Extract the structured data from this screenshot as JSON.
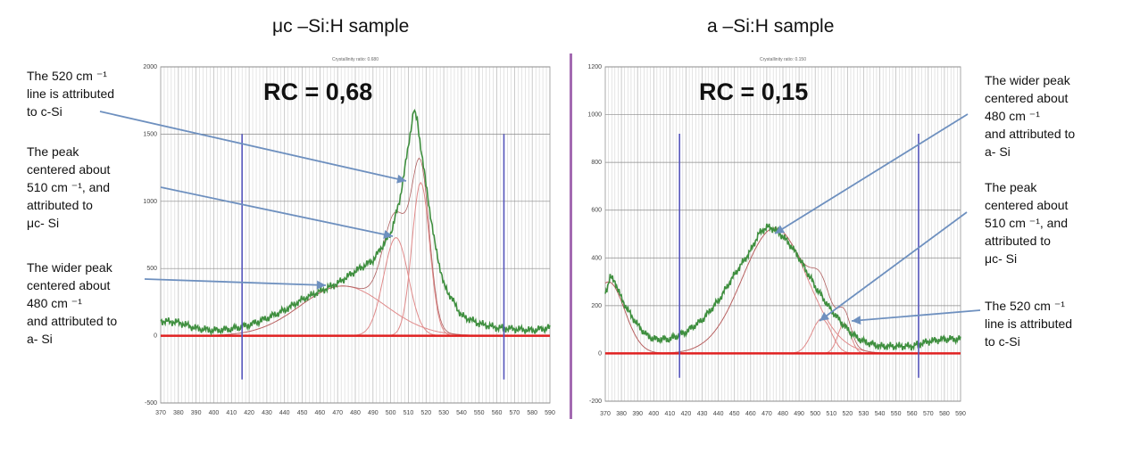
{
  "colors": {
    "measured": "#3f8f3f",
    "fit_component": "#e08a8a",
    "fit_sum": "#b06060",
    "baseline": "#e02020",
    "marker": "#5555bb",
    "annotation_arrow": "#6e90bf",
    "divider": "#a36ab1",
    "grid": "#b5b5b5"
  },
  "panels": [
    {
      "title": "μc –Si:H sample",
      "annotations": [
        "The 520 cm ⁻¹\nline is attributed\nto c-Si",
        "The peak\ncentered about\n510 cm ⁻¹, and\nattributed to\nμc- Si",
        "The wider peak\ncentered about\n480 cm ⁻¹\nand attributed to\na- Si"
      ]
    },
    {
      "title": "a –Si:H sample",
      "annotations": [
        "The wider peak\ncentered about\n480 cm ⁻¹\nand attributed to\na- Si",
        "The peak\ncentered about\n510 cm ⁻¹, and\nattributed to\nμc- Si",
        "The 520 cm ⁻¹\nline is attributed\nto c-Si"
      ]
    }
  ],
  "chart_data": [
    {
      "type": "line",
      "title": "Crystallinity ratio: 0.680",
      "annotation": "RC = 0,68",
      "xlim": [
        370,
        590
      ],
      "ylim": [
        -500,
        2000
      ],
      "x_ticks": [
        370,
        380,
        390,
        400,
        410,
        420,
        430,
        440,
        450,
        460,
        470,
        480,
        490,
        500,
        510,
        520,
        530,
        540,
        550,
        560,
        570,
        580,
        590
      ],
      "y_ticks": [
        -500,
        0,
        500,
        1000,
        1500,
        2000
      ],
      "markers_x": [
        416,
        564
      ],
      "grid": true,
      "series": [
        {
          "role": "measured",
          "x": [
            370,
            380,
            390,
            400,
            410,
            420,
            430,
            440,
            450,
            460,
            470,
            480,
            490,
            500,
            505,
            510,
            513,
            515,
            520,
            525,
            530,
            540,
            550,
            560,
            570,
            580,
            590
          ],
          "y": [
            110,
            100,
            55,
            40,
            50,
            80,
            130,
            190,
            270,
            330,
            390,
            480,
            560,
            760,
            1000,
            1410,
            1680,
            1600,
            1120,
            680,
            380,
            150,
            90,
            60,
            50,
            40,
            60
          ]
        },
        {
          "role": "component",
          "name": "c-Si",
          "center": 517,
          "amplitude": 1140,
          "width": 5
        },
        {
          "role": "component",
          "name": "μc-Si",
          "center": 503,
          "amplitude": 730,
          "width": 7
        },
        {
          "role": "component",
          "name": "a-Si",
          "center": 473,
          "amplitude": 370,
          "width": 24
        },
        {
          "role": "baseline",
          "x": [
            370,
            590
          ],
          "y": [
            0,
            0
          ]
        }
      ]
    },
    {
      "type": "line",
      "title": "Crystallinity ratio: 0.150",
      "annotation": "RC = 0,15",
      "xlim": [
        370,
        590
      ],
      "ylim": [
        -200,
        1200
      ],
      "x_ticks": [
        370,
        380,
        390,
        400,
        410,
        420,
        430,
        440,
        450,
        460,
        470,
        480,
        490,
        500,
        510,
        520,
        530,
        540,
        550,
        560,
        570,
        580,
        590
      ],
      "y_ticks": [
        -200,
        0,
        200,
        400,
        600,
        800,
        1000,
        1200
      ],
      "markers_x": [
        416,
        564
      ],
      "grid": true,
      "series": [
        {
          "role": "measured",
          "x": [
            370,
            373,
            376,
            380,
            385,
            390,
            395,
            400,
            410,
            420,
            430,
            440,
            450,
            460,
            465,
            470,
            475,
            480,
            485,
            490,
            495,
            500,
            505,
            510,
            515,
            520,
            525,
            530,
            535,
            540,
            550,
            560,
            570,
            580,
            590
          ],
          "y": [
            250,
            320,
            300,
            230,
            170,
            120,
            80,
            60,
            60,
            90,
            140,
            220,
            330,
            430,
            500,
            530,
            520,
            490,
            450,
            400,
            340,
            280,
            230,
            180,
            140,
            100,
            70,
            50,
            40,
            30,
            30,
            30,
            50,
            60,
            60
          ]
        },
        {
          "role": "component",
          "name": "a-Si",
          "center": 475,
          "amplitude": 525,
          "width": 20
        },
        {
          "role": "component",
          "name": "μc-Si",
          "center": 504,
          "amplitude": 145,
          "width": 6
        },
        {
          "role": "component",
          "name": "c-Si",
          "center": 518,
          "amplitude": 125,
          "width": 4
        },
        {
          "role": "component",
          "name": "low-wavenumber band",
          "center": 372,
          "amplitude": 300,
          "width": 10
        },
        {
          "role": "baseline",
          "x": [
            370,
            590
          ],
          "y": [
            0,
            0
          ]
        }
      ]
    }
  ]
}
